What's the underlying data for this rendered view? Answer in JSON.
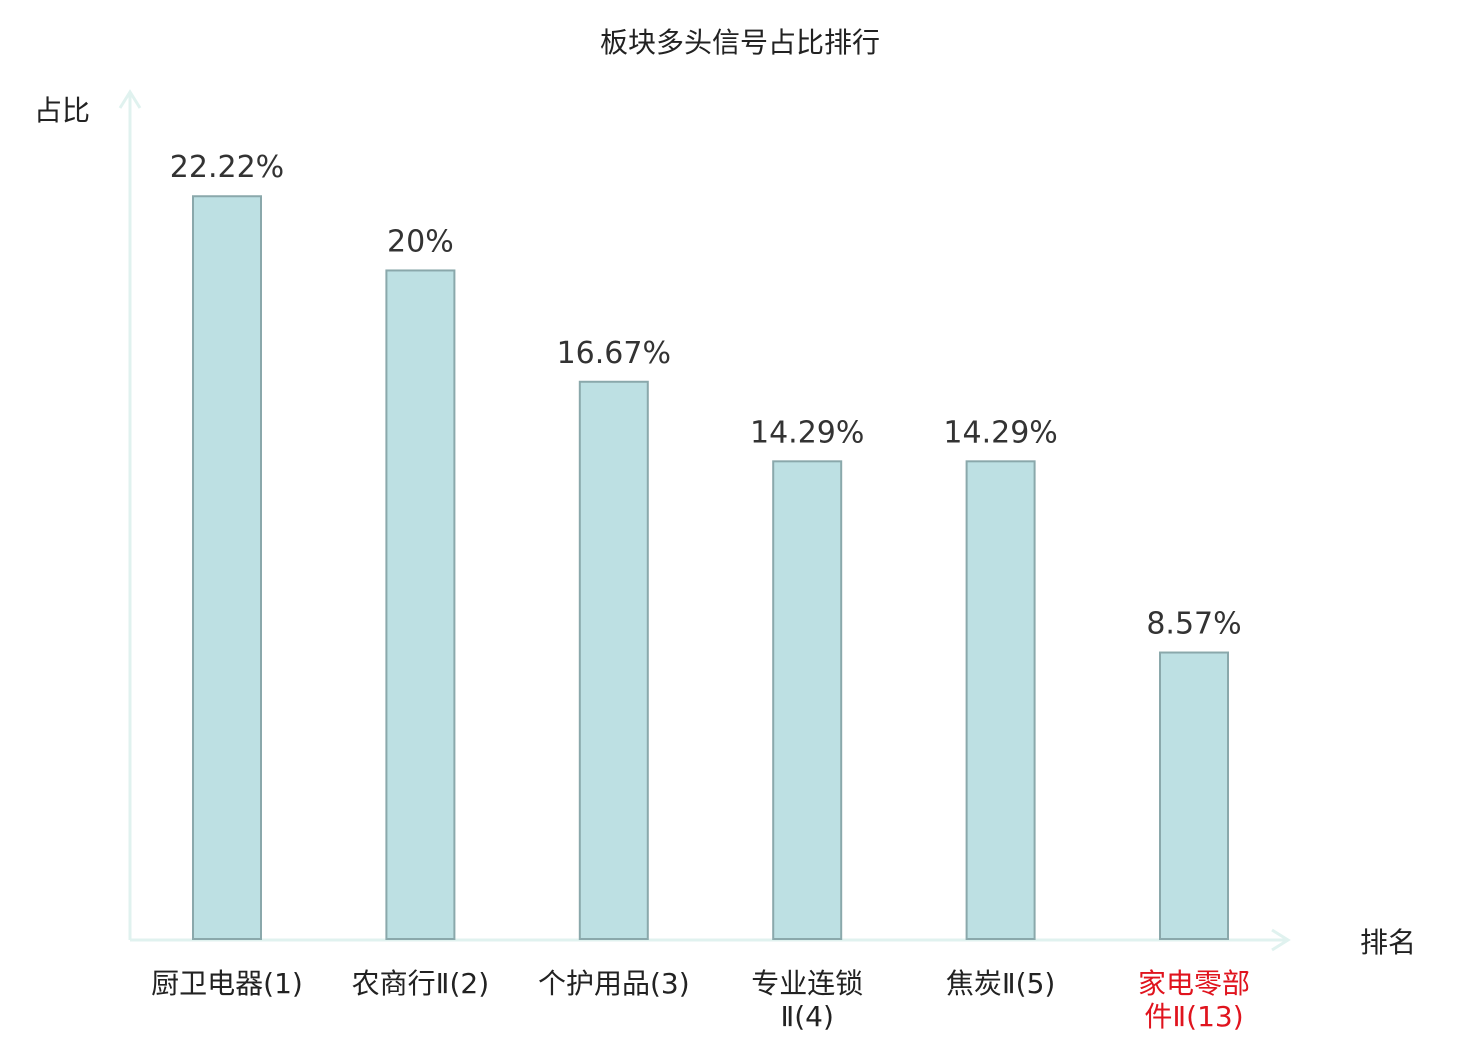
{
  "chart_data": {
    "type": "bar",
    "title": "板块多头信号占比排行",
    "ylabel": "占比",
    "xlabel": "排名",
    "categories": [
      [
        "厨卫电器(1)"
      ],
      [
        "农商行Ⅱ(2)"
      ],
      [
        "个护用品(3)"
      ],
      [
        "专业连锁",
        "Ⅱ(4)"
      ],
      [
        "焦炭Ⅱ(5)"
      ],
      [
        "家电零部",
        "件Ⅱ(13)"
      ]
    ],
    "values": [
      22.22,
      20,
      16.67,
      14.29,
      14.29,
      8.57
    ],
    "value_labels": [
      "22.22%",
      "20%",
      "16.67%",
      "14.29%",
      "14.29%",
      "8.57%"
    ],
    "highlight_index": 5,
    "ylim": [
      0,
      24.8
    ],
    "grid": false,
    "colors": {
      "bar_fill": "#bde0e3",
      "bar_stroke": "#8aa8ab",
      "axis": "#e0f2ef",
      "label": "#222222",
      "value_label": "#333333",
      "highlight": "#e0141e"
    }
  }
}
